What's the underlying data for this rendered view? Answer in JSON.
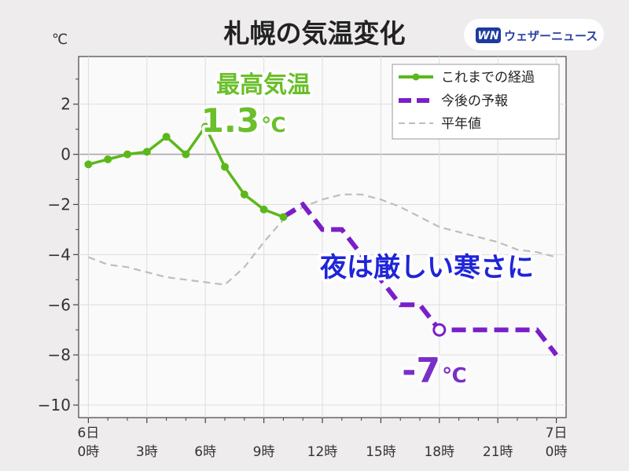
{
  "header": {
    "title": "札幌の気温変化",
    "unit": "℃",
    "brand": {
      "logo_text": "WN",
      "name": "ウェザーニュース"
    }
  },
  "annotations": {
    "max_label": "最高気温",
    "max_value_num": "1.3",
    "max_value_unit": "℃",
    "night_text": "夜は厳しい寒さに",
    "min_value_num": "-7",
    "min_value_unit": "℃"
  },
  "colors": {
    "observed": "#5bb81a",
    "forecast": "#7a1fc8",
    "normal": "#bdbdbd",
    "annot_blue": "#1f25d8",
    "brand": "#2a3fa0"
  },
  "chart_data": {
    "type": "line",
    "title": "札幌の気温変化",
    "ylabel": "℃",
    "ylim": [
      -10.5,
      3.9
    ],
    "xlim": [
      -0.5,
      24.5
    ],
    "yticks": [
      2,
      0,
      -2,
      -4,
      -6,
      -8,
      -10
    ],
    "ytick_labels": [
      "2",
      "0",
      "−2",
      "−4",
      "−6",
      "−8",
      "−10"
    ],
    "xticks": [
      {
        "x": 0,
        "label": [
          "6日",
          "0時"
        ]
      },
      {
        "x": 3,
        "label": [
          "3時"
        ]
      },
      {
        "x": 6,
        "label": [
          "6時"
        ]
      },
      {
        "x": 9,
        "label": [
          "9時"
        ]
      },
      {
        "x": 12,
        "label": [
          "12時"
        ]
      },
      {
        "x": 15,
        "label": [
          "15時"
        ]
      },
      {
        "x": 18,
        "label": [
          "18時"
        ]
      },
      {
        "x": 21,
        "label": [
          "21時"
        ]
      },
      {
        "x": 24,
        "label": [
          "7日",
          "0時"
        ]
      }
    ],
    "grid": true,
    "legend_position": "top-right",
    "series": [
      {
        "name": "これまでの経過",
        "style": "solid-marker",
        "x": [
          0,
          1,
          2,
          3,
          4,
          5,
          6,
          7,
          8,
          9,
          10
        ],
        "y": [
          -0.4,
          -0.2,
          0.0,
          0.1,
          0.7,
          0.0,
          1.1,
          -0.5,
          -1.6,
          -2.2,
          -2.5
        ]
      },
      {
        "name": "今後の予報",
        "style": "dashed",
        "x": [
          10,
          11,
          12,
          13,
          14,
          15,
          16,
          17,
          18,
          19,
          20,
          21,
          22,
          23,
          24
        ],
        "y": [
          -2.5,
          -2.0,
          -3.0,
          -3.0,
          -4.0,
          -5.0,
          -6.0,
          -6.0,
          -7.0,
          -7.0,
          -7.0,
          -7.0,
          -7.0,
          -7.0,
          -8.0
        ]
      },
      {
        "name": "平年値",
        "style": "dashed-thin",
        "x": [
          0,
          1,
          2,
          3,
          4,
          5,
          6,
          7,
          8,
          9,
          10,
          11,
          12,
          13,
          14,
          15,
          16,
          17,
          18,
          19,
          20,
          21,
          22,
          23,
          24
        ],
        "y": [
          -4.1,
          -4.4,
          -4.5,
          -4.7,
          -4.9,
          -5.0,
          -5.1,
          -5.2,
          -4.5,
          -3.5,
          -2.6,
          -2.1,
          -1.8,
          -1.6,
          -1.6,
          -1.8,
          -2.1,
          -2.5,
          -2.9,
          -3.1,
          -3.3,
          -3.5,
          -3.8,
          -3.9,
          -4.1
        ]
      }
    ],
    "markers": [
      {
        "series": "これまでの経過",
        "x": 6,
        "y": 1.1,
        "label": "最高気温 1.3℃"
      },
      {
        "series": "今後の予報",
        "x": 18,
        "y": -7.0,
        "label": "-7℃"
      }
    ]
  }
}
